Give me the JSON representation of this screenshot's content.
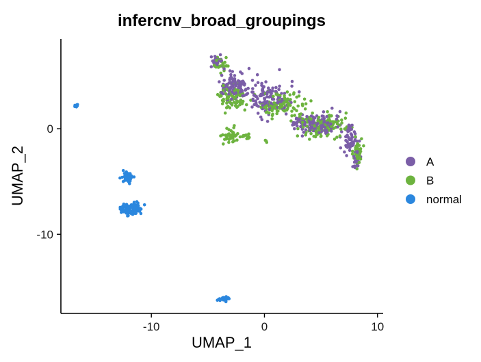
{
  "chart_data": {
    "type": "scatter",
    "title": "infercnv_broad_groupings",
    "xlabel": "UMAP_1",
    "ylabel": "UMAP_2",
    "xlim": [
      -18,
      10.5
    ],
    "ylim": [
      -17.5,
      8.5
    ],
    "x_ticks": [
      -10,
      0,
      10
    ],
    "x_tick_labels": [
      "-10",
      "0",
      "10"
    ],
    "y_ticks": [
      0,
      -10
    ],
    "y_tick_labels": [
      "0",
      "-10"
    ],
    "grid": false,
    "legend_position": "right",
    "series": [
      {
        "name": "A",
        "color": "#7B5EA7",
        "clusters": [
          {
            "center": [
              -4.2,
              6.3
            ],
            "spread": [
              0.6,
              0.5
            ],
            "n": 30
          },
          {
            "center": [
              -2.5,
              4.0
            ],
            "spread": [
              1.4,
              1.2
            ],
            "n": 110
          },
          {
            "center": [
              0.5,
              3.0
            ],
            "spread": [
              1.8,
              1.5
            ],
            "n": 120
          },
          {
            "center": [
              4.5,
              0.5
            ],
            "spread": [
              2.0,
              1.0
            ],
            "n": 130
          },
          {
            "center": [
              7.5,
              -0.8
            ],
            "spread": [
              0.8,
              1.2
            ],
            "n": 60
          },
          {
            "center": [
              8.2,
              -2.8
            ],
            "spread": [
              0.4,
              1.0
            ],
            "n": 25
          }
        ]
      },
      {
        "name": "B",
        "color": "#6DB33F",
        "clusters": [
          {
            "center": [
              -3.8,
              6.0
            ],
            "spread": [
              0.7,
              0.7
            ],
            "n": 25
          },
          {
            "center": [
              -2.8,
              3.0
            ],
            "spread": [
              1.3,
              1.3
            ],
            "n": 90
          },
          {
            "center": [
              1.5,
              2.2
            ],
            "spread": [
              2.0,
              1.3
            ],
            "n": 110
          },
          {
            "center": [
              5.0,
              0.3
            ],
            "spread": [
              2.0,
              1.1
            ],
            "n": 120
          },
          {
            "center": [
              8.3,
              -2.2
            ],
            "spread": [
              0.5,
              1.3
            ],
            "n": 40
          },
          {
            "center": [
              -3.0,
              -0.6
            ],
            "spread": [
              0.7,
              0.8
            ],
            "n": 40
          },
          {
            "center": [
              -1.4,
              -0.7
            ],
            "spread": [
              0.8,
              0.3
            ],
            "n": 15
          },
          {
            "center": [
              0.2,
              -1.2
            ],
            "spread": [
              0.15,
              0.1
            ],
            "n": 3
          }
        ]
      },
      {
        "name": "normal",
        "color": "#2B87DE",
        "clusters": [
          {
            "center": [
              -16.7,
              2.2
            ],
            "spread": [
              0.15,
              0.15
            ],
            "n": 6
          },
          {
            "center": [
              -12.1,
              -4.6
            ],
            "spread": [
              0.45,
              0.5
            ],
            "n": 50
          },
          {
            "center": [
              -11.8,
              -7.6
            ],
            "spread": [
              0.9,
              0.55
            ],
            "n": 110
          },
          {
            "center": [
              -3.5,
              -16.1
            ],
            "spread": [
              0.45,
              0.25
            ],
            "n": 35
          }
        ]
      }
    ]
  }
}
